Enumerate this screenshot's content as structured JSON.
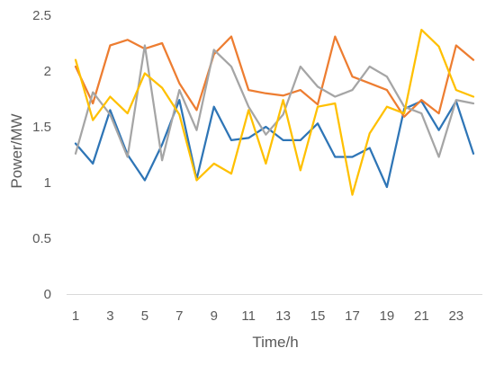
{
  "chart_data": {
    "type": "line",
    "title": "",
    "xlabel": "Time/h",
    "ylabel": "Power/MW",
    "xlim": [
      1,
      24
    ],
    "ylim": [
      0,
      2.5
    ],
    "x": [
      1,
      2,
      3,
      4,
      5,
      6,
      7,
      8,
      9,
      10,
      11,
      12,
      13,
      14,
      15,
      16,
      17,
      18,
      19,
      20,
      21,
      22,
      23,
      24
    ],
    "x_tick_labels": [
      "1",
      "3",
      "5",
      "7",
      "9",
      "11",
      "13",
      "15",
      "17",
      "19",
      "21",
      "23"
    ],
    "y_tick_labels": [
      "0",
      "0.5",
      "1",
      "1.5",
      "2",
      "2.5"
    ],
    "y_ticks": [
      0,
      0.5,
      1,
      1.5,
      2,
      2.5
    ],
    "grid": false,
    "legend": "none",
    "series": [
      {
        "color": "#2e75b6",
        "values": [
          1.35,
          1.17,
          1.65,
          1.25,
          1.02,
          1.34,
          1.74,
          1.03,
          1.68,
          1.38,
          1.4,
          1.5,
          1.38,
          1.38,
          1.53,
          1.23,
          1.23,
          1.31,
          0.96,
          1.66,
          1.73,
          1.47,
          1.73,
          1.26
        ]
      },
      {
        "color": "#ed7d31",
        "values": [
          2.04,
          1.71,
          2.23,
          2.28,
          2.2,
          2.25,
          1.89,
          1.65,
          2.15,
          2.31,
          1.83,
          1.8,
          1.78,
          1.83,
          1.7,
          2.31,
          1.95,
          1.89,
          1.83,
          1.59,
          1.74,
          1.62,
          2.23,
          2.1
        ]
      },
      {
        "color": "#a5a5a5",
        "values": [
          1.26,
          1.81,
          1.61,
          1.23,
          2.23,
          1.2,
          1.83,
          1.47,
          2.19,
          2.04,
          1.68,
          1.43,
          1.61,
          2.04,
          1.86,
          1.77,
          1.83,
          2.04,
          1.95,
          1.68,
          1.62,
          1.23,
          1.74,
          1.71
        ]
      },
      {
        "color": "#ffc000",
        "values": [
          2.1,
          1.56,
          1.77,
          1.62,
          1.98,
          1.85,
          1.61,
          1.02,
          1.17,
          1.08,
          1.65,
          1.17,
          1.74,
          1.11,
          1.68,
          1.71,
          0.89,
          1.44,
          1.68,
          1.62,
          2.37,
          2.22,
          1.83,
          1.77
        ]
      }
    ]
  }
}
